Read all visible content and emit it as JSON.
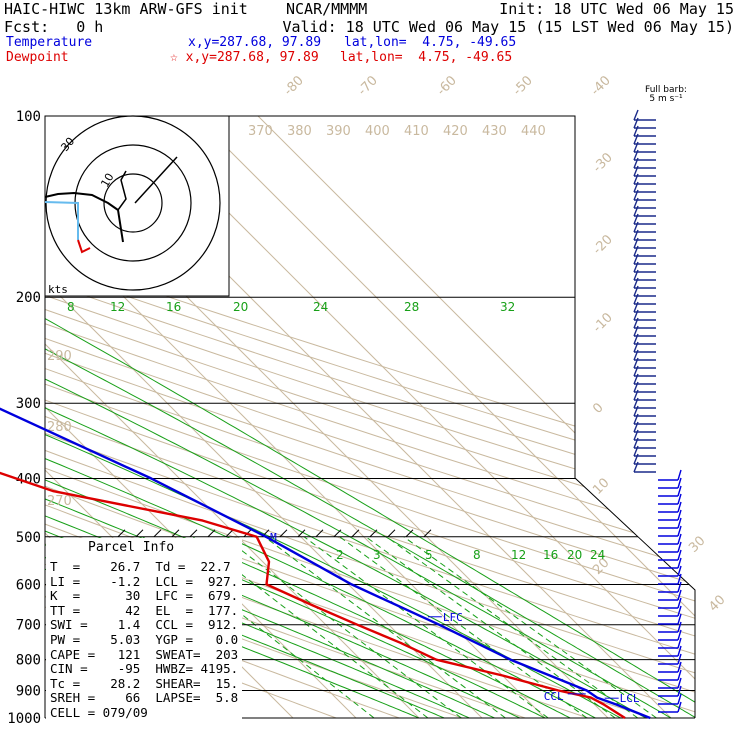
{
  "header": {
    "model": "HAIC-HIWC 13km ARW-GFS init",
    "center": "NCAR/MMMM",
    "init": "Init: 18 UTC Wed 06 May 15",
    "fcst": "Fcst:   0 h",
    "valid": "Valid: 18 UTC Wed 06 May 15 (15 LST Wed 06 May 15)",
    "temp_label": "Temperature",
    "temp_xy": "x,y=287.68, 97.89",
    "temp_latlon": "lat,lon=  4.75, -49.65",
    "dew_label": "Dewpoint",
    "dew_xy": "☆ x,y=287.68, 97.89",
    "dew_latlon": "lat,lon=  4.75, -49.65",
    "barb_title": "Full barb:",
    "barb_unit": "5 m s⁻¹",
    "hodo_unit": "kts",
    "hodo_label_a": "30",
    "hodo_label_b": "10"
  },
  "colors": {
    "temperature": "#0000dd",
    "dewpoint": "#dd0000",
    "mixing": "#18a018",
    "adiabat": "#c9b99f"
  },
  "chart_data": {
    "type": "line",
    "title": "",
    "xlabel": "",
    "ylabel": "",
    "pressure_ticks": [
      100,
      200,
      300,
      400,
      500,
      600,
      700,
      800,
      900,
      1000
    ],
    "temperature_isotherm_labels": [
      -80,
      -70,
      -60,
      -50,
      -40,
      -30,
      -20,
      -10,
      0,
      10,
      20,
      30,
      40
    ],
    "theta_labels_top": [
      370,
      380,
      390,
      400,
      410,
      420,
      430,
      440
    ],
    "theta_labels_left": [
      290,
      280,
      270
    ],
    "mixing_ratio_labels_upper": [
      8,
      12,
      16,
      20,
      24,
      28,
      32
    ],
    "mixing_ratio_labels_lower": [
      2,
      3,
      5,
      8,
      12,
      16,
      20,
      24
    ],
    "series": [
      {
        "name": "Temperature",
        "pressure": [
          1000,
          950,
          925,
          900,
          850,
          800,
          700,
          600,
          500,
          400,
          300,
          250,
          200,
          150,
          120,
          100
        ],
        "values": [
          26.7,
          23.5,
          21.5,
          21.0,
          17.5,
          13.8,
          8.0,
          0.5,
          -5.5,
          -14.5,
          -28.5,
          -38.0,
          -50.5,
          -68.0,
          -80.0,
          -79.0
        ]
      },
      {
        "name": "Dewpoint",
        "pressure": [
          1000,
          950,
          925,
          900,
          850,
          800,
          750,
          700,
          650,
          600,
          550,
          500,
          470,
          420,
          390,
          350,
          300,
          270,
          250,
          230,
          200,
          180,
          160,
          140,
          120,
          110,
          100
        ],
        "values": [
          22.7,
          21.5,
          20.5,
          16.5,
          10.0,
          2.0,
          -1.0,
          -5.0,
          -9.0,
          -13.0,
          -9.0,
          -7.0,
          -13.0,
          -32.0,
          -38.0,
          -37.0,
          -33.0,
          -44.0,
          -54.0,
          -56.0,
          -60.0,
          -70.0,
          -82.0,
          -90.0,
          -92.0,
          -89.0,
          -84.0
        ]
      }
    ],
    "levels": [
      {
        "label": "EL",
        "pressure": 177
      },
      {
        "label": "LFC",
        "pressure": 679
      },
      {
        "label": "LCL",
        "pressure": 927
      },
      {
        "label": "CCL",
        "pressure": 912
      },
      {
        "label": "M",
        "pressure": 500
      }
    ],
    "hodograph_rings_kts": [
      10,
      20,
      30
    ]
  },
  "parcel": {
    "title": "Parcel Info",
    "rows": [
      "T  =    26.7  Td =  22.7",
      "LI =    -1.2  LCL =  927.",
      "K  =      30  LFC =  679.",
      "TT =      42  EL  =  177.",
      "SWI =    1.4  CCL =  912.",
      "PW =    5.03  YGP =   0.0",
      "CAPE =   121  SWEAT=  203",
      "CIN =    -95  HWBZ= 4195.",
      "Tc =    28.2  SHEAR=  15.",
      "SREH =    66  LAPSE=  5.8",
      "CELL = 079/09"
    ]
  }
}
